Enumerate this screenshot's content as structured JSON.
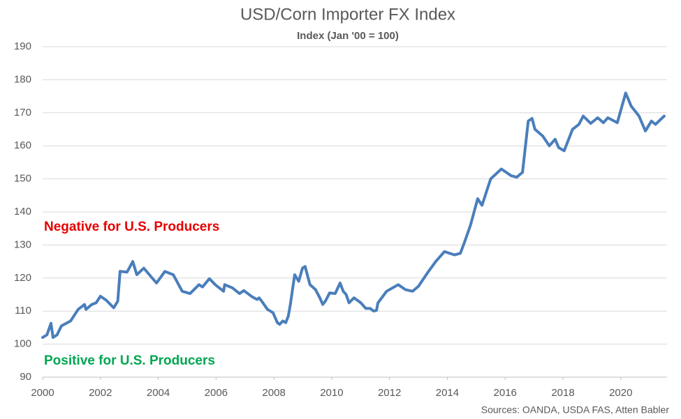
{
  "chart_data": {
    "type": "line",
    "title": "USD/Corn Importer FX Index",
    "subtitle": "Index (Jan '00 = 100)",
    "annotations": [
      {
        "text": "Negative for U.S. Producers",
        "color": "#e60000"
      },
      {
        "text": "Positive for U.S. Producers",
        "color": "#00a651"
      }
    ],
    "source": "Sources: OANDA, USDA FAS, Atten Babler",
    "xlim": [
      2000,
      2021.6
    ],
    "xticks": [
      2000,
      2002,
      2004,
      2006,
      2008,
      2010,
      2012,
      2014,
      2016,
      2018,
      2020
    ],
    "ylim": [
      90,
      190
    ],
    "yticks": [
      90,
      100,
      110,
      120,
      130,
      140,
      150,
      160,
      170,
      180,
      190
    ],
    "grid": true,
    "series": [
      {
        "name": "USD/Corn Importer FX Index",
        "color": "#4a7ebb",
        "x": [
          2000.0,
          2000.15,
          2000.29,
          2000.36,
          2000.5,
          2000.65,
          2000.97,
          2001.23,
          2001.45,
          2001.5,
          2001.7,
          2001.85,
          2002.0,
          2002.2,
          2002.46,
          2002.6,
          2002.68,
          2002.92,
          2003.12,
          2003.26,
          2003.5,
          2003.74,
          2003.94,
          2004.23,
          2004.52,
          2004.83,
          2005.1,
          2005.41,
          2005.53,
          2005.77,
          2005.97,
          2006.26,
          2006.3,
          2006.57,
          2006.81,
          2006.96,
          2007.25,
          2007.42,
          2007.49,
          2007.58,
          2007.78,
          2007.97,
          2008.12,
          2008.2,
          2008.31,
          2008.41,
          2008.5,
          2008.57,
          2008.72,
          2008.86,
          2008.99,
          2009.08,
          2009.25,
          2009.44,
          2009.59,
          2009.69,
          2009.78,
          2009.93,
          2010.12,
          2010.29,
          2010.4,
          2010.5,
          2010.6,
          2010.77,
          2011.01,
          2011.18,
          2011.33,
          2011.45,
          2011.55,
          2011.6,
          2011.9,
          2012.3,
          2012.55,
          2012.8,
          2013.0,
          2013.35,
          2013.6,
          2013.9,
          2014.25,
          2014.45,
          2014.6,
          2014.8,
          2015.05,
          2015.2,
          2015.5,
          2015.87,
          2016.2,
          2016.4,
          2016.6,
          2016.8,
          2016.93,
          2017.03,
          2017.3,
          2017.53,
          2017.73,
          2017.85,
          2018.04,
          2018.33,
          2018.55,
          2018.7,
          2018.96,
          2019.2,
          2019.4,
          2019.55,
          2019.88,
          2020.17,
          2020.36,
          2020.63,
          2020.85,
          2021.06,
          2021.2,
          2021.5
        ],
        "values": [
          102,
          102.8,
          106.3,
          102,
          102.8,
          105.5,
          107,
          110.5,
          112,
          110.5,
          112,
          112.5,
          114.5,
          113.3,
          111,
          113,
          122,
          121.8,
          125,
          121,
          123,
          120.5,
          118.5,
          122,
          121,
          116,
          115.3,
          118,
          117.3,
          119.8,
          118,
          116,
          118,
          117,
          115.3,
          116.2,
          114.3,
          113.5,
          114,
          113,
          110.5,
          109.5,
          106.5,
          106,
          107,
          106.5,
          108.5,
          112,
          121,
          119,
          123,
          123.5,
          118,
          116.5,
          114,
          112,
          113,
          115.5,
          115.3,
          118.5,
          116,
          115,
          112.5,
          114,
          112.5,
          110.8,
          110.8,
          110,
          110.2,
          112.5,
          116,
          118,
          116.5,
          116,
          117.5,
          122,
          125,
          128,
          127,
          127.5,
          131,
          136,
          144,
          142,
          150,
          153,
          151,
          150.5,
          152,
          167.5,
          168.3,
          165,
          163,
          160,
          162,
          159.5,
          158.5,
          165,
          166.5,
          169,
          166.8,
          168.5,
          167,
          168.5,
          167,
          176,
          172,
          169,
          164.5,
          167.5,
          166.5,
          169
        ]
      }
    ]
  }
}
